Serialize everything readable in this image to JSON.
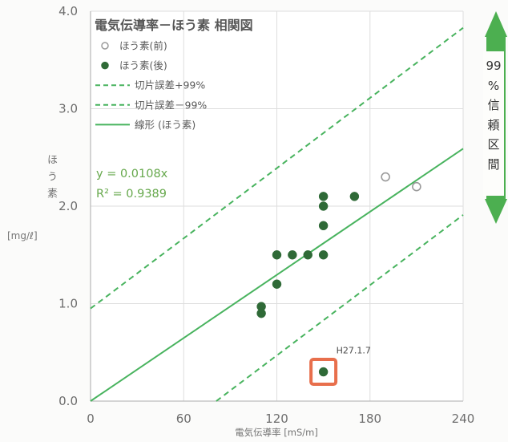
{
  "chart_data": {
    "type": "scatter",
    "title": "電気伝導率－ほう素 相関図",
    "xlabel": "電気伝導率 [mS/m]",
    "ylabel": "ほう素",
    "ylabel_unit": "[mg/ℓ]",
    "xlim": [
      0,
      240
    ],
    "ylim": [
      0,
      4.0
    ],
    "x_tick_labels": [
      "0",
      "60",
      "120",
      "180",
      "240"
    ],
    "y_tick_labels": [
      "0.0",
      "1.0",
      "2.0",
      "3.0",
      "4.0"
    ],
    "grid": true,
    "legend_position": "top-left",
    "series": [
      {
        "name": "ほう素(前)",
        "type": "scatter",
        "filled": false,
        "color": "#9a9a9a",
        "points": [
          [
            190,
            2.3
          ],
          [
            210,
            2.2
          ]
        ]
      },
      {
        "name": "ほう素(後)",
        "type": "scatter",
        "filled": true,
        "color": "#2f6a37",
        "points": [
          [
            110,
            0.97
          ],
          [
            110,
            0.9
          ],
          [
            120,
            1.2
          ],
          [
            120,
            1.5
          ],
          [
            130,
            1.5
          ],
          [
            140,
            1.5
          ],
          [
            150,
            1.5
          ],
          [
            150,
            1.8
          ],
          [
            150,
            2.0
          ],
          [
            150,
            2.1
          ],
          [
            170,
            2.1
          ],
          [
            150,
            0.3
          ]
        ]
      },
      {
        "name": "切片誤差+99%",
        "type": "line",
        "dashed": true,
        "color": "#48b35e",
        "points": [
          [
            0,
            0.95
          ],
          [
            240,
            3.83
          ]
        ]
      },
      {
        "name": "切片誤差－99%",
        "type": "line",
        "dashed": true,
        "color": "#48b35e",
        "points": [
          [
            81,
            0
          ],
          [
            240,
            1.91
          ]
        ]
      },
      {
        "name": "線形 (ほう素)",
        "type": "line",
        "dashed": false,
        "color": "#48b35e",
        "points": [
          [
            0,
            0
          ],
          [
            240,
            2.59
          ]
        ]
      }
    ],
    "equation": "y = 0.0108x",
    "r_squared": "R² = 0.9389",
    "annotations": [
      {
        "text": "H27.1.7",
        "x": 150,
        "y": 0.3,
        "color": "#e86f4c"
      }
    ]
  },
  "confidence_interval": {
    "label_lines": [
      "99",
      "%",
      "信",
      "頼",
      "区",
      "間"
    ],
    "color": "#4caf50"
  }
}
